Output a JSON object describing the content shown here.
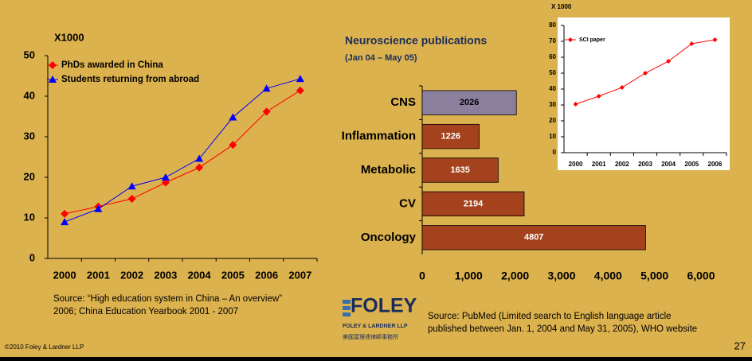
{
  "chart_data": [
    {
      "type": "line",
      "title": "X1000",
      "categories": [
        "2000",
        "2001",
        "2002",
        "2003",
        "2004",
        "2005",
        "2006",
        "2007"
      ],
      "series": [
        {
          "name": "PhDs awarded in China",
          "color": "#ff0000",
          "marker": "diamond",
          "values": [
            11,
            12.8,
            14.7,
            18.7,
            22.4,
            28,
            36.2,
            41.4
          ]
        },
        {
          "name": "Students returning from abroad",
          "color": "#0000ff",
          "marker": "triangle",
          "values": [
            9,
            12.2,
            17.8,
            20,
            24.6,
            34.8,
            41.9,
            44.3
          ]
        }
      ],
      "ylim": [
        0,
        50
      ],
      "yticks": [
        0,
        10,
        20,
        30,
        40,
        50
      ],
      "grid": false,
      "legend": "upper left"
    },
    {
      "type": "hbar",
      "title": "Neuroscience publications",
      "subtitle": "(Jan 04 – May 05)",
      "categories": [
        "CNS",
        "Inflammation",
        "Metabolic",
        "CV",
        "Oncology"
      ],
      "values": [
        2026,
        1226,
        1635,
        2194,
        4807
      ],
      "colors": [
        "#8a809e",
        "#a3421c",
        "#a3421c",
        "#a3421c",
        "#a3421c"
      ],
      "label_colors": [
        "#000000",
        "#ffffff",
        "#ffffff",
        "#ffffff",
        "#ffffff"
      ],
      "xlim": [
        0,
        6000
      ],
      "xticks": [
        0,
        {
          "value": 1000,
          "label": "1,000"
        },
        {
          "value": 2000,
          "label": "2,000"
        },
        {
          "value": 3000,
          "label": "3,000"
        },
        {
          "value": 4000,
          "label": "4,000"
        },
        {
          "value": 5000,
          "label": "5,000"
        },
        {
          "value": 6000,
          "label": "6,000"
        }
      ],
      "grid": false
    },
    {
      "type": "line",
      "title": "X 1000",
      "categories": [
        "2000",
        "2001",
        "2002",
        "2003",
        "2004",
        "2005",
        "2006"
      ],
      "series": [
        {
          "name": "SCI paper",
          "color": "#ff0000",
          "marker": "diamond",
          "values": [
            30.5,
            35.5,
            41,
            50,
            57.5,
            68.5,
            71
          ]
        }
      ],
      "ylim": [
        0,
        80
      ],
      "yticks": [
        0,
        10,
        20,
        30,
        40,
        50,
        60,
        70,
        80
      ],
      "grid": false,
      "legend": "upper left"
    }
  ],
  "slide": {
    "source_left": [
      "Source: “High education system in China – An overview”",
      "2006; China Education Yearbook 2001 - 2007"
    ],
    "logo": "FOLEY",
    "logo_sub": "FOLEY & LARDNER LLP",
    "logo_cn": "美國富理達律師事務所",
    "source_right": [
      "Source: PubMed (Limited search to English language article",
      "published between Jan. 1, 2004 and May 31, 2005), WHO website"
    ],
    "copyright": "©2010 Foley & Lardner LLP",
    "page": "27"
  }
}
